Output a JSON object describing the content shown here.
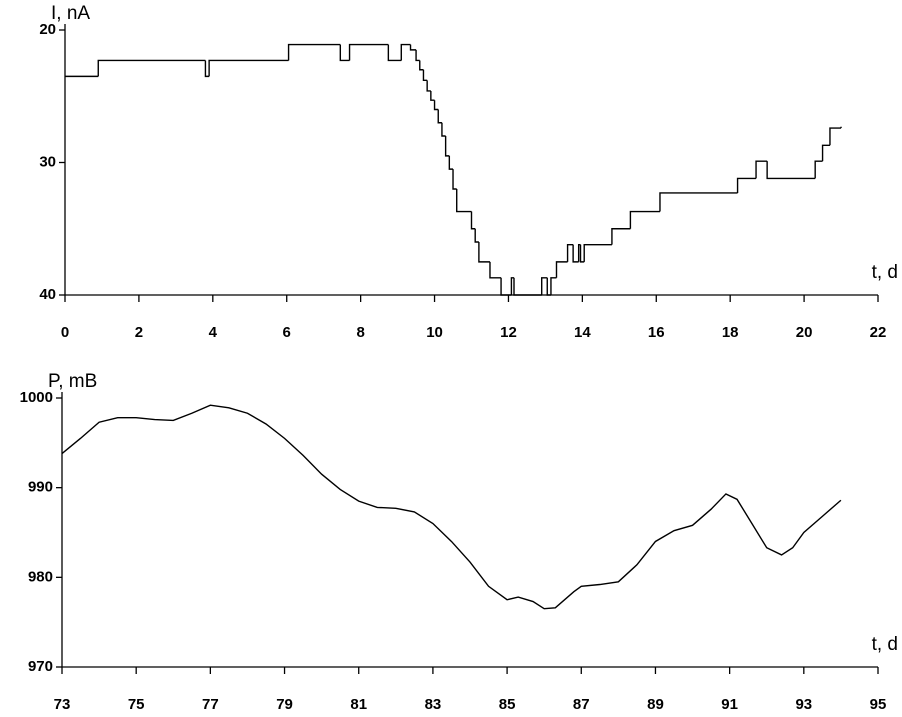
{
  "chart_data": [
    {
      "type": "line",
      "step": "post",
      "ylabel": "I, nA",
      "xlabel": "t, d",
      "color": "#000000",
      "x": [
        0,
        0.9,
        3.8,
        3.9,
        6.05,
        7.45,
        7.7,
        8.75,
        9.1,
        9.35,
        9.5,
        9.6,
        9.7,
        9.8,
        9.9,
        10.0,
        10.1,
        10.2,
        10.3,
        10.4,
        10.5,
        10.6,
        11.0,
        11.1,
        11.2,
        11.5,
        11.8,
        12.08,
        12.15,
        12.9,
        13.05,
        13.15,
        13.3,
        13.6,
        13.75,
        13.9,
        13.95,
        14.05,
        14.8,
        15.3,
        16.1,
        18.2,
        18.7,
        19.0,
        20.3,
        20.5,
        20.7,
        21.0
      ],
      "values": [
        23.5,
        22.3,
        23.5,
        22.3,
        21.1,
        22.3,
        21.1,
        22.3,
        21.1,
        21.5,
        22.3,
        23,
        23.8,
        24.6,
        25.3,
        26,
        27,
        28,
        29.5,
        30.5,
        32,
        33.7,
        35,
        36,
        37.5,
        38.7,
        40,
        38.7,
        40,
        38.7,
        40,
        38.7,
        37.5,
        36.2,
        37.5,
        36.2,
        37.5,
        36.2,
        35,
        33.7,
        32.3,
        31.2,
        29.9,
        31.2,
        29.9,
        28.7,
        27.4,
        27.3
      ],
      "xlim": [
        0,
        22
      ],
      "xticks": [
        0,
        2,
        4,
        6,
        8,
        10,
        12,
        14,
        16,
        18,
        20,
        22
      ],
      "ylim": [
        40,
        20
      ],
      "yticks": [
        20,
        30,
        40
      ]
    },
    {
      "type": "line",
      "ylabel": "P, mB",
      "xlabel": "t, d",
      "color": "#000000",
      "x": [
        73,
        73.5,
        74,
        74.5,
        75,
        75.5,
        76,
        76.5,
        77,
        77.5,
        78,
        78.5,
        79,
        79.5,
        80,
        80.5,
        81,
        81.5,
        82,
        82.5,
        83,
        83.5,
        84,
        84.5,
        85,
        85.3,
        85.7,
        86,
        86.3,
        86.8,
        87,
        87.5,
        88,
        88.5,
        89,
        89.5,
        90,
        90.5,
        90.9,
        91.2,
        91.6,
        92,
        92.4,
        92.7,
        93,
        93.5,
        94
      ],
      "values": [
        993.8,
        995.5,
        997.3,
        997.8,
        997.8,
        997.6,
        997.5,
        998.3,
        999.2,
        998.9,
        998.3,
        997.1,
        995.5,
        993.6,
        991.5,
        989.8,
        988.5,
        987.8,
        987.7,
        987.3,
        986,
        984,
        981.7,
        979,
        977.5,
        977.8,
        977.3,
        976.5,
        976.6,
        978.4,
        979,
        979.2,
        979.5,
        981.4,
        984,
        985.2,
        985.8,
        987.6,
        989.3,
        988.7,
        986,
        983.3,
        982.5,
        983.3,
        985,
        986.8,
        988.6
      ],
      "xlim": [
        73,
        95
      ],
      "xticks": [
        73,
        75,
        77,
        79,
        81,
        83,
        85,
        87,
        89,
        91,
        93,
        95
      ],
      "ylim": [
        970,
        1000
      ],
      "yticks": [
        970,
        980,
        990,
        1000
      ]
    }
  ]
}
